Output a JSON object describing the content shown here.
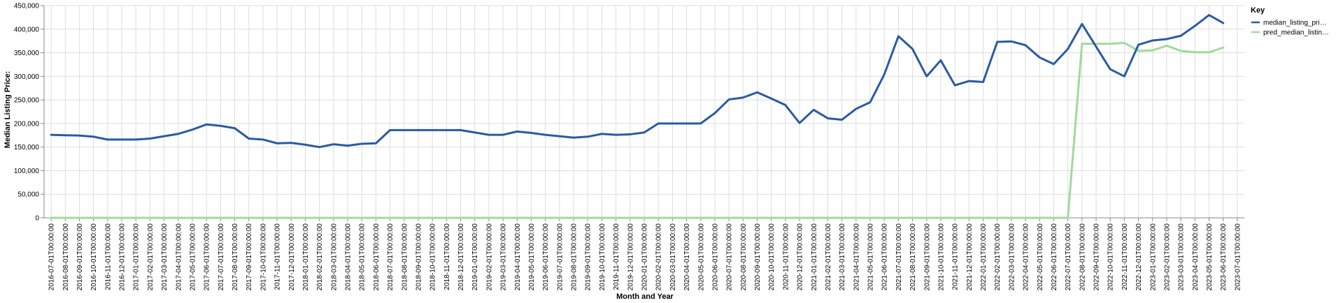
{
  "chart_data": {
    "type": "line",
    "xlabel": "Month and Year",
    "ylabel": "Median Listing Price:",
    "ylim": [
      0,
      450000
    ],
    "yticks": [
      "0",
      "50,000",
      "100,000",
      "150,000",
      "200,000",
      "250,000",
      "300,000",
      "350,000",
      "400,000",
      "450,000"
    ],
    "grid": true,
    "legend": {
      "title": "Key",
      "position": "right"
    },
    "x": [
      "2016-07-01T00:00:00",
      "2016-08-01T00:00:00",
      "2016-09-01T00:00:00",
      "2016-10-01T00:00:00",
      "2016-11-01T00:00:00",
      "2016-12-01T00:00:00",
      "2017-01-01T00:00:00",
      "2017-02-01T00:00:00",
      "2017-03-01T00:00:00",
      "2017-04-01T00:00:00",
      "2017-05-01T00:00:00",
      "2017-06-01T00:00:00",
      "2017-07-01T00:00:00",
      "2017-08-01T00:00:00",
      "2017-09-01T00:00:00",
      "2017-10-01T00:00:00",
      "2017-11-01T00:00:00",
      "2017-12-01T00:00:00",
      "2018-01-01T00:00:00",
      "2018-02-01T00:00:00",
      "2018-03-01T00:00:00",
      "2018-04-01T00:00:00",
      "2018-05-01T00:00:00",
      "2018-06-01T00:00:00",
      "2018-07-01T00:00:00",
      "2018-08-01T00:00:00",
      "2018-09-01T00:00:00",
      "2018-10-01T00:00:00",
      "2018-11-01T00:00:00",
      "2018-12-01T00:00:00",
      "2019-01-01T00:00:00",
      "2019-02-01T00:00:00",
      "2019-03-01T00:00:00",
      "2019-04-01T00:00:00",
      "2019-05-01T00:00:00",
      "2019-06-01T00:00:00",
      "2019-07-01T00:00:00",
      "2019-08-01T00:00:00",
      "2019-09-01T00:00:00",
      "2019-10-01T00:00:00",
      "2019-11-01T00:00:00",
      "2019-12-01T00:00:00",
      "2020-01-01T00:00:00",
      "2020-02-01T00:00:00",
      "2020-03-01T00:00:00",
      "2020-04-01T00:00:00",
      "2020-05-01T00:00:00",
      "2020-06-01T00:00:00",
      "2020-07-01T00:00:00",
      "2020-08-01T00:00:00",
      "2020-09-01T00:00:00",
      "2020-10-01T00:00:00",
      "2020-11-01T00:00:00",
      "2020-12-01T00:00:00",
      "2021-01-01T00:00:00",
      "2021-02-01T00:00:00",
      "2021-03-01T00:00:00",
      "2021-04-01T00:00:00",
      "2021-05-01T00:00:00",
      "2021-06-01T00:00:00",
      "2021-07-01T00:00:00",
      "2021-08-01T00:00:00",
      "2021-09-01T00:00:00",
      "2021-10-01T00:00:00",
      "2021-11-01T00:00:00",
      "2021-12-01T00:00:00",
      "2022-01-01T00:00:00",
      "2022-02-01T00:00:00",
      "2022-03-01T00:00:00",
      "2022-04-01T00:00:00",
      "2022-05-01T00:00:00",
      "2022-06-01T00:00:00",
      "2022-07-01T00:00:00",
      "2022-08-01T00:00:00",
      "2022-09-01T00:00:00",
      "2022-10-01T00:00:00",
      "2022-11-01T00:00:00",
      "2022-12-01T00:00:00",
      "2023-01-01T00:00:00",
      "2023-02-01T00:00:00",
      "2023-03-01T00:00:00",
      "2023-04-01T00:00:00",
      "2023-05-01T00:00:00",
      "2023-06-01T00:00:00",
      "2023-07-01T00:00:00"
    ],
    "series": [
      {
        "name": "median_listing_pri…",
        "color": "#2a5ba3",
        "values": [
          176000,
          175000,
          174500,
          172000,
          166000,
          166000,
          166000,
          168000,
          173000,
          178000,
          187000,
          198000,
          195000,
          190000,
          168000,
          166000,
          158000,
          159000,
          155000,
          150000,
          156000,
          153000,
          157000,
          158000,
          186000,
          186000,
          186000,
          186000,
          186000,
          186000,
          181000,
          176000,
          176000,
          183000,
          180000,
          176000,
          173000,
          170000,
          172000,
          178000,
          176000,
          177000,
          181000,
          200000,
          200000,
          200000,
          200000,
          222000,
          251000,
          255000,
          266000,
          253000,
          239000,
          201000,
          229000,
          211000,
          208000,
          231000,
          245000,
          304000,
          385000,
          358000,
          300000,
          334000,
          281000,
          290000,
          288000,
          373000,
          374000,
          366000,
          340000,
          326000,
          358000,
          411000,
          363000,
          315000,
          300000,
          367000,
          376000,
          379000,
          386000,
          407000,
          430000,
          413000,
          null
        ]
      },
      {
        "name": "pred_median_listin…",
        "color": "#a1d99b",
        "values": [
          0,
          0,
          0,
          0,
          0,
          0,
          0,
          0,
          0,
          0,
          0,
          0,
          0,
          0,
          0,
          0,
          0,
          0,
          0,
          0,
          0,
          0,
          0,
          0,
          0,
          0,
          0,
          0,
          0,
          0,
          0,
          0,
          0,
          0,
          0,
          0,
          0,
          0,
          0,
          0,
          0,
          0,
          0,
          0,
          0,
          0,
          0,
          0,
          0,
          0,
          0,
          0,
          0,
          0,
          0,
          0,
          0,
          0,
          0,
          0,
          0,
          0,
          0,
          0,
          0,
          0,
          0,
          0,
          0,
          0,
          0,
          0,
          0,
          369000,
          369000,
          369000,
          371000,
          354000,
          355000,
          365000,
          354000,
          351000,
          351000,
          361000,
          null
        ]
      }
    ]
  }
}
